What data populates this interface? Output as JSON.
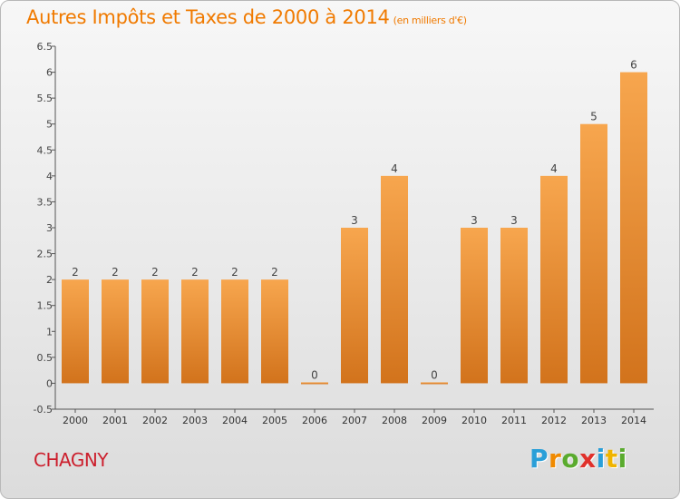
{
  "title": "Autres Impôts et Taxes de 2000 à 2014",
  "unit": "(en milliers d'€)",
  "city": "CHAGNY",
  "logo": {
    "letters": [
      "P",
      "r",
      "o",
      "x",
      "i",
      "t",
      "i"
    ],
    "colors": [
      "#2a9fd8",
      "#f08a00",
      "#5aab2e",
      "#e0312b",
      "#2a9fd8",
      "#f0b400",
      "#5aab2e"
    ]
  },
  "colors": {
    "bar_top": "#f7a64e",
    "bar_bottom": "#d2731c",
    "title": "#f07a00",
    "city": "#cc1f2d"
  },
  "chart_data": {
    "type": "bar",
    "categories": [
      "2000",
      "2001",
      "2002",
      "2003",
      "2004",
      "2005",
      "2006",
      "2007",
      "2008",
      "2009",
      "2010",
      "2011",
      "2012",
      "2013",
      "2014"
    ],
    "values": [
      2,
      2,
      2,
      2,
      2,
      2,
      0,
      3,
      4,
      0,
      3,
      3,
      4,
      5,
      6
    ],
    "data_labels": [
      "2",
      "2",
      "2",
      "2",
      "2",
      "2",
      "0",
      "3",
      "4",
      "0",
      "3",
      "3",
      "4",
      "5",
      "6"
    ],
    "y_ticks": [
      "-0.5",
      "0",
      "0.5",
      "1",
      "1.5",
      "2",
      "2.5",
      "3",
      "3.5",
      "4",
      "4.5",
      "5",
      "5.5",
      "6",
      "6.5"
    ],
    "ylim": [
      -0.5,
      6.5
    ],
    "grid": false
  }
}
